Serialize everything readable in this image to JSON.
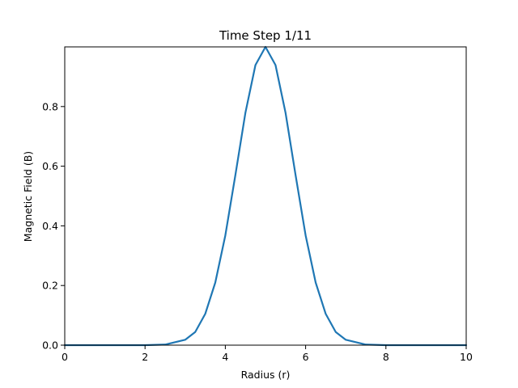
{
  "chart_data": {
    "type": "line",
    "title": "Time Step 1/11",
    "xlabel": "Radius (r)",
    "ylabel": "Magnetic Field (B)",
    "xlim": [
      0,
      10
    ],
    "ylim": [
      0,
      1.0
    ],
    "x_ticks": [
      0,
      2,
      4,
      6,
      8,
      10
    ],
    "y_ticks": [
      0.0,
      0.2,
      0.4,
      0.6,
      0.8
    ],
    "x_tick_labels": [
      "0",
      "2",
      "4",
      "6",
      "8",
      "10"
    ],
    "y_tick_labels": [
      "0.0",
      "0.2",
      "0.4",
      "0.6",
      "0.8"
    ],
    "grid": false,
    "series": [
      {
        "color": "#1f77b4",
        "x": [
          0,
          1,
          2,
          2.5,
          3,
          3.25,
          3.5,
          3.75,
          4,
          4.25,
          4.5,
          4.75,
          5,
          5.25,
          5.5,
          5.75,
          6,
          6.25,
          6.5,
          6.75,
          7,
          7.5,
          8,
          9,
          10
        ],
        "y": [
          0.0,
          0.0,
          0.0,
          0.002,
          0.018,
          0.044,
          0.105,
          0.21,
          0.368,
          0.57,
          0.779,
          0.939,
          1.0,
          0.939,
          0.779,
          0.57,
          0.368,
          0.21,
          0.105,
          0.044,
          0.018,
          0.002,
          0.0,
          0.0,
          0.0
        ]
      }
    ]
  }
}
